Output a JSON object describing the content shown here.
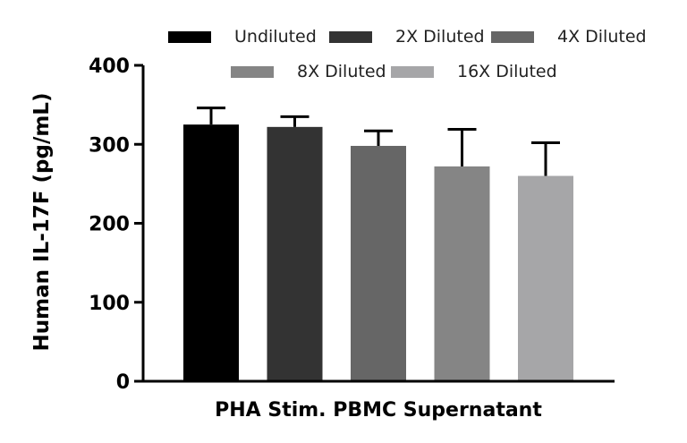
{
  "chart_data": {
    "type": "bar",
    "ylabel": "Human IL-17F (pg/mL)",
    "xlabel": "PHA Stim. PBMC Supernatant",
    "ylim": [
      0,
      400
    ],
    "yticks": [
      0,
      100,
      200,
      300,
      400
    ],
    "ytick_labels": [
      "0",
      "100",
      "200",
      "300",
      "400"
    ],
    "legend_position": "top",
    "series": [
      {
        "name": "Undiluted",
        "value": 325,
        "error": 21,
        "color": "#000000"
      },
      {
        "name": "2X Diluted",
        "value": 322,
        "error": 13,
        "color": "#333333"
      },
      {
        "name": "4X Diluted",
        "value": 298,
        "error": 19,
        "color": "#666666"
      },
      {
        "name": "8X Diluted",
        "value": 272,
        "error": 47,
        "color": "#858585"
      },
      {
        "name": "16X Diluted",
        "value": 260,
        "error": 42,
        "color": "#a6a6a8"
      }
    ]
  }
}
